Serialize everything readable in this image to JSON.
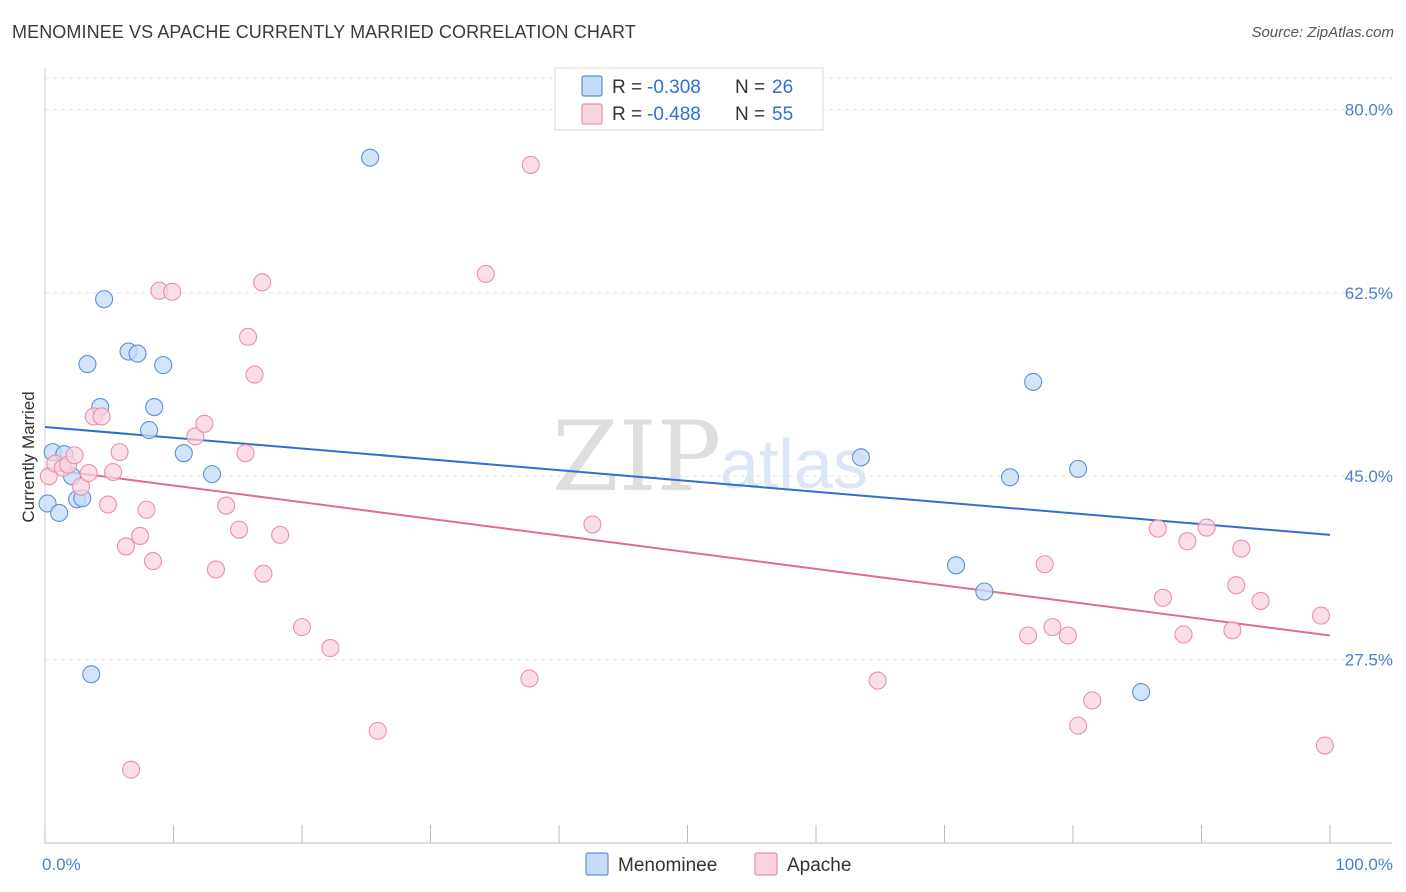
{
  "title": "MENOMINEE VS APACHE CURRENTLY MARRIED CORRELATION CHART",
  "source": "Source: ZipAtlas.com",
  "watermark": {
    "zip": "ZIP",
    "atlas": "atlas"
  },
  "colors": {
    "menominee": "#5b8fd6",
    "menominee_fill": "#c6dbf5",
    "menominee_line": "#2e6fcf",
    "apache": "#ea8fae",
    "apache_fill": "#f9d3df",
    "apache_line": "#e06b95",
    "tick_text": "#4a7fd0"
  },
  "legend": {
    "menominee": {
      "r_label": "R =",
      "r_value": "-0.308",
      "n_label": "N =",
      "n_value": "26"
    },
    "apache": {
      "r_label": "R =",
      "r_value": "-0.488",
      "n_label": "N =",
      "n_value": "55"
    }
  },
  "chart_data": {
    "type": "scatter",
    "title": "MENOMINEE VS APACHE CURRENTLY MARRIED CORRELATION CHART",
    "xlabel": "",
    "ylabel": "Currently Married",
    "xlim": [
      0,
      100
    ],
    "ylim": [
      10,
      83
    ],
    "x_tick_labels": [
      "0.0%",
      "100.0%"
    ],
    "y_ticks": [
      27.5,
      45.0,
      62.5,
      80.0
    ],
    "y_tick_labels": [
      "27.5%",
      "45.0%",
      "62.5%",
      "80.0%"
    ],
    "grid": true,
    "legend_position": "top-center",
    "series": [
      {
        "name": "Menominee",
        "r": -0.308,
        "n": 26,
        "trend": {
          "x": [
            0,
            100
          ],
          "y": [
            49.7,
            39.4
          ]
        },
        "points": [
          {
            "x": 0.2,
            "y": 42.4
          },
          {
            "x": 0.6,
            "y": 47.3
          },
          {
            "x": 1.1,
            "y": 41.5
          },
          {
            "x": 1.5,
            "y": 47.1
          },
          {
            "x": 2.1,
            "y": 45.0
          },
          {
            "x": 2.5,
            "y": 42.8
          },
          {
            "x": 2.9,
            "y": 42.9
          },
          {
            "x": 3.3,
            "y": 55.7
          },
          {
            "x": 3.6,
            "y": 26.1
          },
          {
            "x": 4.3,
            "y": 51.6
          },
          {
            "x": 4.6,
            "y": 61.9
          },
          {
            "x": 6.5,
            "y": 56.9
          },
          {
            "x": 7.2,
            "y": 56.7
          },
          {
            "x": 8.1,
            "y": 49.4
          },
          {
            "x": 8.5,
            "y": 51.6
          },
          {
            "x": 9.2,
            "y": 55.6
          },
          {
            "x": 10.8,
            "y": 47.2
          },
          {
            "x": 13.0,
            "y": 45.2
          },
          {
            "x": 25.3,
            "y": 75.4
          },
          {
            "x": 63.5,
            "y": 46.8
          },
          {
            "x": 70.9,
            "y": 36.5
          },
          {
            "x": 73.1,
            "y": 34.0
          },
          {
            "x": 75.1,
            "y": 44.9
          },
          {
            "x": 76.9,
            "y": 54.0
          },
          {
            "x": 80.4,
            "y": 45.7
          },
          {
            "x": 85.3,
            "y": 24.4
          }
        ]
      },
      {
        "name": "Apache",
        "r": -0.488,
        "n": 55,
        "trend": {
          "x": [
            0,
            100
          ],
          "y": [
            45.7,
            29.8
          ]
        },
        "points": [
          {
            "x": 0.3,
            "y": 45.0
          },
          {
            "x": 0.8,
            "y": 46.2
          },
          {
            "x": 1.4,
            "y": 45.8
          },
          {
            "x": 1.8,
            "y": 46.1
          },
          {
            "x": 2.3,
            "y": 47.0
          },
          {
            "x": 2.8,
            "y": 44.0
          },
          {
            "x": 3.4,
            "y": 45.3
          },
          {
            "x": 3.8,
            "y": 50.7
          },
          {
            "x": 4.4,
            "y": 50.7
          },
          {
            "x": 4.9,
            "y": 42.3
          },
          {
            "x": 5.3,
            "y": 45.4
          },
          {
            "x": 5.8,
            "y": 47.3
          },
          {
            "x": 6.3,
            "y": 38.3
          },
          {
            "x": 6.7,
            "y": 17.0
          },
          {
            "x": 7.4,
            "y": 39.3
          },
          {
            "x": 7.9,
            "y": 41.8
          },
          {
            "x": 8.4,
            "y": 36.9
          },
          {
            "x": 8.9,
            "y": 62.7
          },
          {
            "x": 9.9,
            "y": 62.6
          },
          {
            "x": 11.7,
            "y": 48.8
          },
          {
            "x": 12.4,
            "y": 50.0
          },
          {
            "x": 13.3,
            "y": 36.1
          },
          {
            "x": 14.1,
            "y": 42.2
          },
          {
            "x": 15.1,
            "y": 39.9
          },
          {
            "x": 15.6,
            "y": 47.2
          },
          {
            "x": 15.8,
            "y": 58.3
          },
          {
            "x": 16.3,
            "y": 54.7
          },
          {
            "x": 16.9,
            "y": 63.5
          },
          {
            "x": 17.0,
            "y": 35.7
          },
          {
            "x": 18.3,
            "y": 39.4
          },
          {
            "x": 20.0,
            "y": 30.6
          },
          {
            "x": 22.2,
            "y": 28.6
          },
          {
            "x": 25.9,
            "y": 20.7
          },
          {
            "x": 34.3,
            "y": 64.3
          },
          {
            "x": 37.7,
            "y": 25.7
          },
          {
            "x": 37.8,
            "y": 74.7
          },
          {
            "x": 42.6,
            "y": 40.4
          },
          {
            "x": 64.8,
            "y": 25.5
          },
          {
            "x": 76.5,
            "y": 29.8
          },
          {
            "x": 77.8,
            "y": 36.6
          },
          {
            "x": 78.4,
            "y": 30.6
          },
          {
            "x": 79.6,
            "y": 29.8
          },
          {
            "x": 80.4,
            "y": 21.2
          },
          {
            "x": 81.5,
            "y": 23.6
          },
          {
            "x": 86.6,
            "y": 40.0
          },
          {
            "x": 87.0,
            "y": 33.4
          },
          {
            "x": 88.6,
            "y": 29.9
          },
          {
            "x": 88.9,
            "y": 38.8
          },
          {
            "x": 90.4,
            "y": 40.1
          },
          {
            "x": 92.4,
            "y": 30.3
          },
          {
            "x": 92.7,
            "y": 34.6
          },
          {
            "x": 93.1,
            "y": 38.1
          },
          {
            "x": 94.6,
            "y": 33.1
          },
          {
            "x": 99.3,
            "y": 31.7
          },
          {
            "x": 99.6,
            "y": 19.3
          }
        ]
      }
    ]
  }
}
